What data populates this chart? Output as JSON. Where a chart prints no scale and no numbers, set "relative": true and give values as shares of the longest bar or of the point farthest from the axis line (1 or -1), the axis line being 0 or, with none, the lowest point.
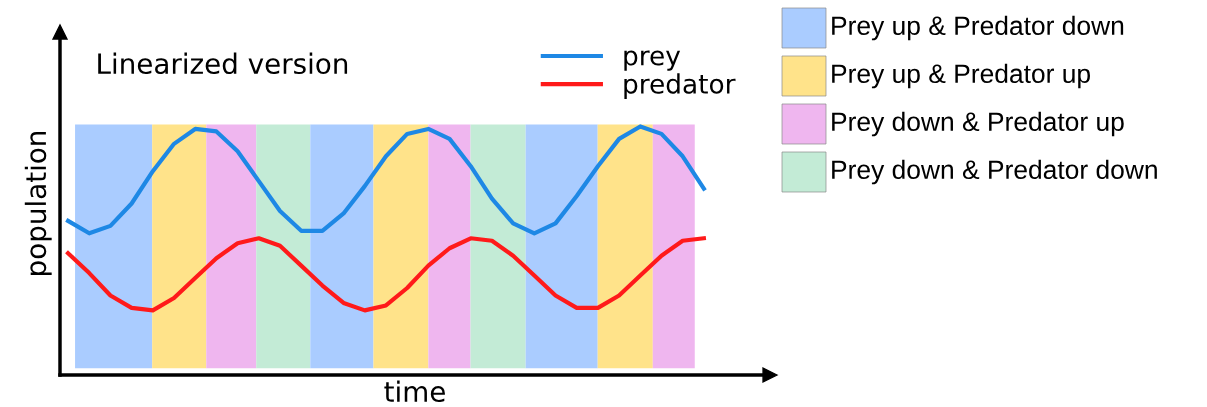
{
  "chart_data": {
    "type": "line",
    "title": "Linearized version",
    "xlabel": "time",
    "ylabel": "population",
    "relative": true,
    "categories": [
      null,
      null,
      null,
      null,
      null,
      null,
      null,
      null,
      null,
      null,
      null,
      null,
      null,
      null,
      null,
      null,
      null,
      null,
      null,
      null,
      null,
      null,
      null,
      null,
      null,
      null,
      null,
      null,
      null,
      null,
      null
    ],
    "series": [
      {
        "name": "prey",
        "color": "#1e88e5",
        "values": [
          0.62,
          0.57,
          0.6,
          0.69,
          0.82,
          0.93,
          0.99,
          0.98,
          0.9,
          0.78,
          0.66,
          0.58,
          0.58,
          0.65,
          0.76,
          0.88,
          0.97,
          0.99,
          0.95,
          0.84,
          0.71,
          0.61,
          0.57,
          0.61,
          0.72,
          0.84,
          0.95,
          1.0,
          0.97,
          0.88,
          0.75
        ]
      },
      {
        "name": "predator",
        "color": "#ff1a1a",
        "values": [
          0.49,
          0.41,
          0.32,
          0.27,
          0.26,
          0.31,
          0.39,
          0.47,
          0.53,
          0.55,
          0.52,
          0.44,
          0.36,
          0.29,
          0.26,
          0.28,
          0.35,
          0.44,
          0.51,
          0.55,
          0.54,
          0.48,
          0.4,
          0.32,
          0.27,
          0.27,
          0.32,
          0.4,
          0.48,
          0.54,
          0.55
        ]
      }
    ],
    "annotations": [
      "Prey up & Predator down",
      "Prey up & Predator up",
      "Prey down & Predator up",
      "Prey down & Predator down"
    ],
    "legend": "top right",
    "tick_labels": false,
    "marker": "none",
    "line_style": "solid"
  }
}
